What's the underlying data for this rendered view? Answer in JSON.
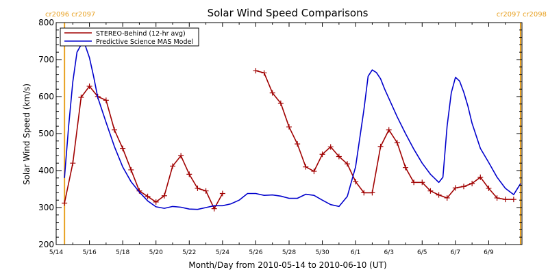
{
  "chart_data": {
    "type": "line",
    "title": "Solar Wind Speed Comparisons",
    "xlabel": "Month/Day from 2010-05-14 to 2010-06-10 (UT)",
    "ylabel": "Solar Wind Speed (km/s)",
    "xlim": [
      "2010-05-14",
      "2010-06-11"
    ],
    "ylim": [
      200,
      800
    ],
    "x_tick_labels": [
      "5/14",
      "5/16",
      "5/18",
      "5/20",
      "5/22",
      "5/24",
      "5/26",
      "5/28",
      "5/30",
      "6/1",
      "6/3",
      "6/5",
      "6/7",
      "6/9"
    ],
    "y_tick_labels": [
      "200",
      "300",
      "400",
      "500",
      "600",
      "700",
      "800"
    ],
    "grid": false,
    "legend_position": "top-left",
    "carrington_markers": {
      "left": "cr2096 cr2097",
      "right": "cr2097 cr2098",
      "color": "#E8A020",
      "dates": [
        "2010-05-14T12:00",
        "2010-06-10T22:00"
      ]
    },
    "series": [
      {
        "name": "STEREO-Behind (12-hr avg)",
        "color": "#A00000",
        "marker": "plus",
        "segments": [
          {
            "x": [
              "2010-05-14T12:00",
              "2010-05-15T00:00",
              "2010-05-15T12:00",
              "2010-05-16T00:00",
              "2010-05-16T12:00",
              "2010-05-17T00:00",
              "2010-05-17T12:00",
              "2010-05-18T00:00",
              "2010-05-18T12:00",
              "2010-05-19T00:00",
              "2010-05-19T12:00",
              "2010-05-20T00:00",
              "2010-05-20T12:00",
              "2010-05-21T00:00",
              "2010-05-21T12:00",
              "2010-05-22T00:00",
              "2010-05-22T12:00",
              "2010-05-23T00:00",
              "2010-05-23T12:00",
              "2010-05-24T00:00"
            ],
            "y": [
              312,
              420,
              598,
              628,
              600,
              590,
              510,
              460,
              402,
              345,
              330,
              315,
              332,
              412,
              440,
              390,
              352,
              345,
              297,
              338
            ]
          },
          {
            "x": [
              "2010-05-26T00:00",
              "2010-05-26T12:00",
              "2010-05-27T00:00",
              "2010-05-27T12:00",
              "2010-05-28T00:00",
              "2010-05-28T12:00",
              "2010-05-29T00:00",
              "2010-05-29T12:00",
              "2010-05-30T00:00",
              "2010-05-30T12:00",
              "2010-05-31T00:00",
              "2010-05-31T12:00",
              "2010-06-01T00:00",
              "2010-06-01T12:00",
              "2010-06-02T00:00",
              "2010-06-02T12:00",
              "2010-06-03T00:00",
              "2010-06-03T12:00",
              "2010-06-04T00:00",
              "2010-06-04T12:00",
              "2010-06-05T00:00",
              "2010-06-05T12:00",
              "2010-06-06T00:00",
              "2010-06-06T12:00",
              "2010-06-07T00:00",
              "2010-06-07T12:00",
              "2010-06-08T00:00",
              "2010-06-08T12:00",
              "2010-06-09T00:00",
              "2010-06-09T12:00",
              "2010-06-10T00:00",
              "2010-06-10T12:00"
            ],
            "y": [
              670,
              664,
              610,
              582,
              518,
              472,
              410,
              398,
              444,
              464,
              438,
              418,
              370,
              340,
              340,
              465,
              510,
              475,
              408,
              368,
              368,
              345,
              334,
              326,
              353,
              357,
              365,
              382,
              352,
              326,
              322,
              322
            ]
          }
        ]
      },
      {
        "name": "Predictive Science MAS Model",
        "color": "#0000CC",
        "marker": "none",
        "x": [
          "2010-05-14T12:00",
          "2010-05-14T18:00",
          "2010-05-15T00:00",
          "2010-05-15T06:00",
          "2010-05-15T12:00",
          "2010-05-15T18:00",
          "2010-05-16T00:00",
          "2010-05-16T06:00",
          "2010-05-16T12:00",
          "2010-05-17T00:00",
          "2010-05-17T12:00",
          "2010-05-18T00:00",
          "2010-05-18T12:00",
          "2010-05-19T00:00",
          "2010-05-19T12:00",
          "2010-05-20T00:00",
          "2010-05-20T12:00",
          "2010-05-21T00:00",
          "2010-05-21T12:00",
          "2010-05-22T00:00",
          "2010-05-22T12:00",
          "2010-05-23T00:00",
          "2010-05-23T12:00",
          "2010-05-24T00:00",
          "2010-05-24T12:00",
          "2010-05-25T00:00",
          "2010-05-25T12:00",
          "2010-05-26T00:00",
          "2010-05-26T12:00",
          "2010-05-27T00:00",
          "2010-05-27T12:00",
          "2010-05-28T00:00",
          "2010-05-28T12:00",
          "2010-05-29T00:00",
          "2010-05-29T12:00",
          "2010-05-30T00:00",
          "2010-05-30T12:00",
          "2010-05-31T00:00",
          "2010-05-31T12:00",
          "2010-06-01T00:00",
          "2010-06-01T12:00",
          "2010-06-01T18:00",
          "2010-06-02T00:00",
          "2010-06-02T06:00",
          "2010-06-02T12:00",
          "2010-06-02T18:00",
          "2010-06-03T00:00",
          "2010-06-03T12:00",
          "2010-06-04T00:00",
          "2010-06-04T12:00",
          "2010-06-05T00:00",
          "2010-06-05T12:00",
          "2010-06-06T00:00",
          "2010-06-06T06:00",
          "2010-06-06T12:00",
          "2010-06-06T18:00",
          "2010-06-07T00:00",
          "2010-06-07T06:00",
          "2010-06-07T12:00",
          "2010-06-07T18:00",
          "2010-06-08T00:00",
          "2010-06-08T12:00",
          "2010-06-09T00:00",
          "2010-06-09T12:00",
          "2010-06-10T00:00",
          "2010-06-10T12:00",
          "2010-06-10T22:00"
        ],
        "y": [
          380,
          520,
          640,
          720,
          740,
          738,
          705,
          655,
          598,
          530,
          465,
          410,
          370,
          342,
          318,
          302,
          298,
          303,
          301,
          296,
          295,
          300,
          305,
          305,
          310,
          320,
          338,
          338,
          333,
          334,
          331,
          325,
          325,
          336,
          333,
          320,
          308,
          303,
          330,
          410,
          565,
          655,
          672,
          665,
          648,
          620,
          595,
          545,
          500,
          458,
          420,
          390,
          368,
          382,
          520,
          610,
          652,
          642,
          612,
          574,
          528,
          460,
          422,
          382,
          352,
          335,
          365
        ]
      }
    ]
  }
}
